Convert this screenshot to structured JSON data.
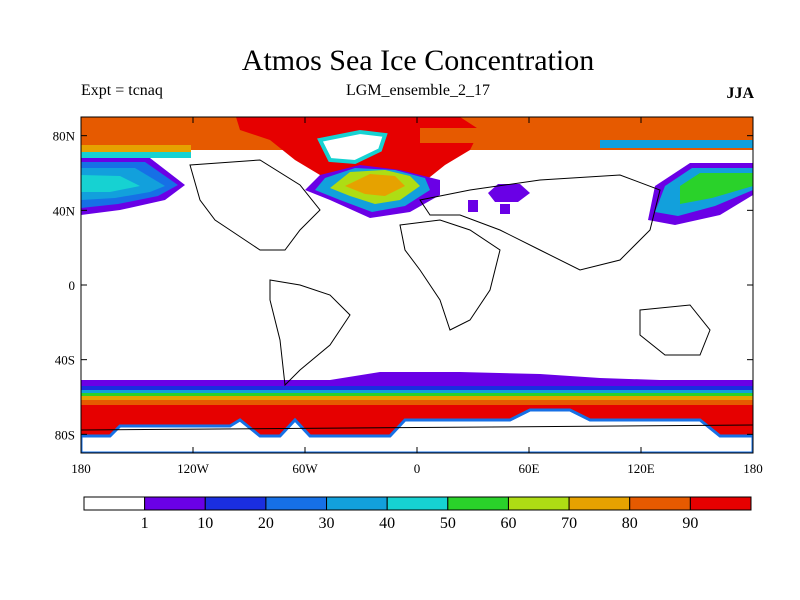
{
  "title": "Atmos Sea Ice Concentration",
  "experiment": "Expt = tcnaq",
  "run_name": "LGM_ensemble_2_17",
  "season": "JJA",
  "map": {
    "projection": "lon-lat",
    "lon_range": [
      -180,
      180
    ],
    "lat_range": [
      -90,
      90
    ],
    "x_ticks": [
      "180",
      "120W",
      "60W",
      "0",
      "60E",
      "120E",
      "180"
    ],
    "y_ticks": [
      "80N",
      "40N",
      "0",
      "40S",
      "80S"
    ]
  },
  "colorbar": {
    "levels": [
      "1",
      "10",
      "20",
      "30",
      "40",
      "50",
      "60",
      "70",
      "80",
      "90"
    ],
    "colors": [
      "#ffffff",
      "#6a00e6",
      "#1a2ee0",
      "#1670e6",
      "#12a0dc",
      "#16d2d2",
      "#2ad22a",
      "#aedd14",
      "#e6a200",
      "#e65a00",
      "#e60000"
    ]
  },
  "icons": {
    "coastline": "coastline-lines"
  }
}
